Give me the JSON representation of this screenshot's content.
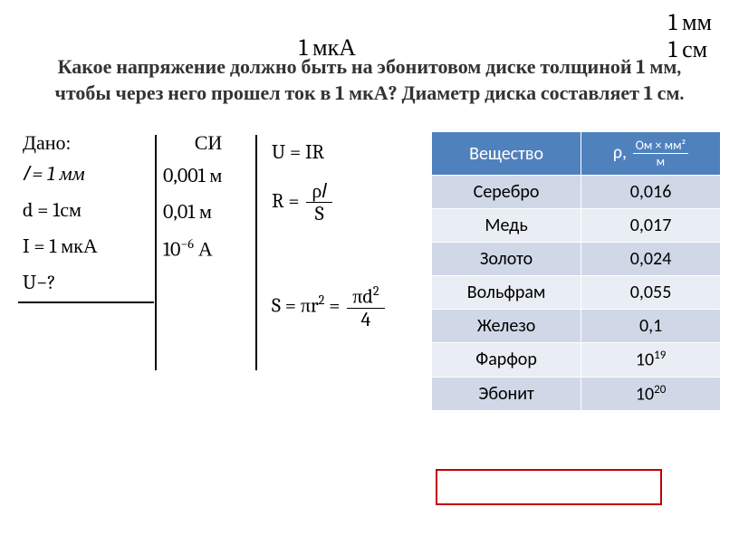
{
  "top_labels": {
    "mm": "1 мм",
    "cm": "1 см",
    "ua": "1 мкА"
  },
  "title": "Какое напряжение должно быть на эбонитовом диске толщиной 1 мм, чтобы через него прошел ток в 1 мкА? Диаметр диска составляет 1 см.",
  "given": {
    "head": "Дано:",
    "l": "𝑙 = 1 мм",
    "d": "d = 1см",
    "i": "I = 1 мкА",
    "u": "U−?"
  },
  "si": {
    "head": "СИ",
    "l": "0,001 м",
    "d": "0,01 м",
    "i_base": "10",
    "i_exp": "−6",
    "i_unit": " А"
  },
  "formulas": {
    "u": "U = IR",
    "r_lhs": "R = ",
    "r_num": "ρ𝑙",
    "r_den": "S",
    "s_lhs": "S = πr",
    "s_exp1": "2",
    "s_eq": " = ",
    "s_num_a": "πd",
    "s_num_exp": "2",
    "s_den": "4"
  },
  "table": {
    "head_substance": "Вещество",
    "head_rho": "ρ, ",
    "head_unit_num": "Ом × мм²",
    "head_unit_den": "м",
    "rows": [
      {
        "name": "Серебро",
        "val": "0,016",
        "exp": ""
      },
      {
        "name": "Медь",
        "val": "0,017",
        "exp": ""
      },
      {
        "name": "Золото",
        "val": "0,024",
        "exp": ""
      },
      {
        "name": "Вольфрам",
        "val": "0,055",
        "exp": ""
      },
      {
        "name": "Железо",
        "val": "0,1",
        "exp": ""
      },
      {
        "name": "Фарфор",
        "val": "10",
        "exp": "19"
      },
      {
        "name": "Эбонит",
        "val": "10",
        "exp": "20"
      }
    ]
  }
}
